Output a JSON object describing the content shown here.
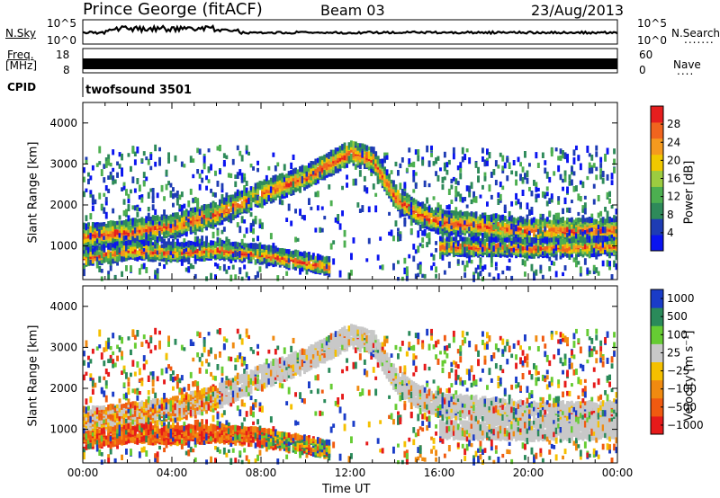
{
  "header": {
    "station": "Prince George (fitACF)",
    "beam": "Beam 03",
    "date": "23/Aug/2013"
  },
  "sky_panel": {
    "left_label": "N.Sky",
    "right_label": "N.Search",
    "left_ticks": [
      "10^5",
      "10^0"
    ],
    "right_ticks": [
      "10^5",
      "10^0"
    ],
    "search_dots": "......."
  },
  "freq_panel": {
    "left_label_line1": "Freq.",
    "left_label_line2": "[MHz]",
    "left_ticks": [
      "18",
      "8"
    ],
    "right_label": "Nave",
    "right_ticks": [
      "60",
      "0"
    ],
    "nave_dots": "...."
  },
  "cpid_panel": {
    "label": "CPID",
    "mode_text": "twofsound 3501"
  },
  "colors": {
    "power_scale": [
      "#0a14f0",
      "#1e3cb4",
      "#2e8a5a",
      "#4caf50",
      "#9ccc40",
      "#f0c800",
      "#f59a1e",
      "#f0641e",
      "#e61e1e"
    ],
    "velocity_scale": [
      "#1a3cc8",
      "#2a8a5a",
      "#66cc33",
      "#c8c8c8",
      "#f5c000",
      "#f08a10",
      "#f05a10",
      "#e61a1a"
    ],
    "ground_scatter": "#c8c8c8"
  },
  "chart_data": [
    {
      "type": "heatmap",
      "panel": "power",
      "ylabel": "Slant Range [km]",
      "ylim": [
        180,
        4500
      ],
      "y_ticks": [
        1000,
        2000,
        3000,
        4000
      ],
      "xlim": [
        0,
        24
      ],
      "colorbar": {
        "label": "Power [dB]",
        "ticks": [
          "4",
          "8",
          "12",
          "16",
          "20",
          "24",
          "28"
        ],
        "range": [
          0,
          30
        ]
      },
      "echo_bands": [
        {
          "name": "main",
          "t": [
            0,
            2,
            4,
            6,
            8,
            10,
            12,
            13,
            14,
            15,
            16,
            20,
            24
          ],
          "range_km": [
            1250,
            1350,
            1500,
            1800,
            2300,
            2700,
            3300,
            3100,
            2200,
            1800,
            1600,
            1400,
            1400
          ]
        },
        {
          "name": "near",
          "t": [
            0,
            2,
            4,
            6,
            8,
            10,
            11
          ],
          "range_km": [
            700,
            900,
            850,
            900,
            800,
            600,
            500
          ]
        },
        {
          "name": "outer",
          "t": [
            16,
            20,
            24
          ],
          "range_km": [
            1000,
            950,
            1000
          ]
        }
      ]
    },
    {
      "type": "heatmap",
      "panel": "velocity",
      "ylabel": "Slant Range [km]",
      "ylim": [
        180,
        4500
      ],
      "y_ticks": [
        1000,
        2000,
        3000,
        4000
      ],
      "xlim": [
        0,
        24
      ],
      "xlabel": "Time UT",
      "x_ticks": [
        "00:00",
        "04:00",
        "08:00",
        "12:00",
        "16:00",
        "20:00",
        "00:00"
      ],
      "colorbar": {
        "label": "Velocity [m s⁻¹]",
        "ticks": [
          "1000",
          "500",
          "100",
          "25",
          "−25",
          "−100",
          "−500",
          "−1000"
        ]
      }
    }
  ]
}
